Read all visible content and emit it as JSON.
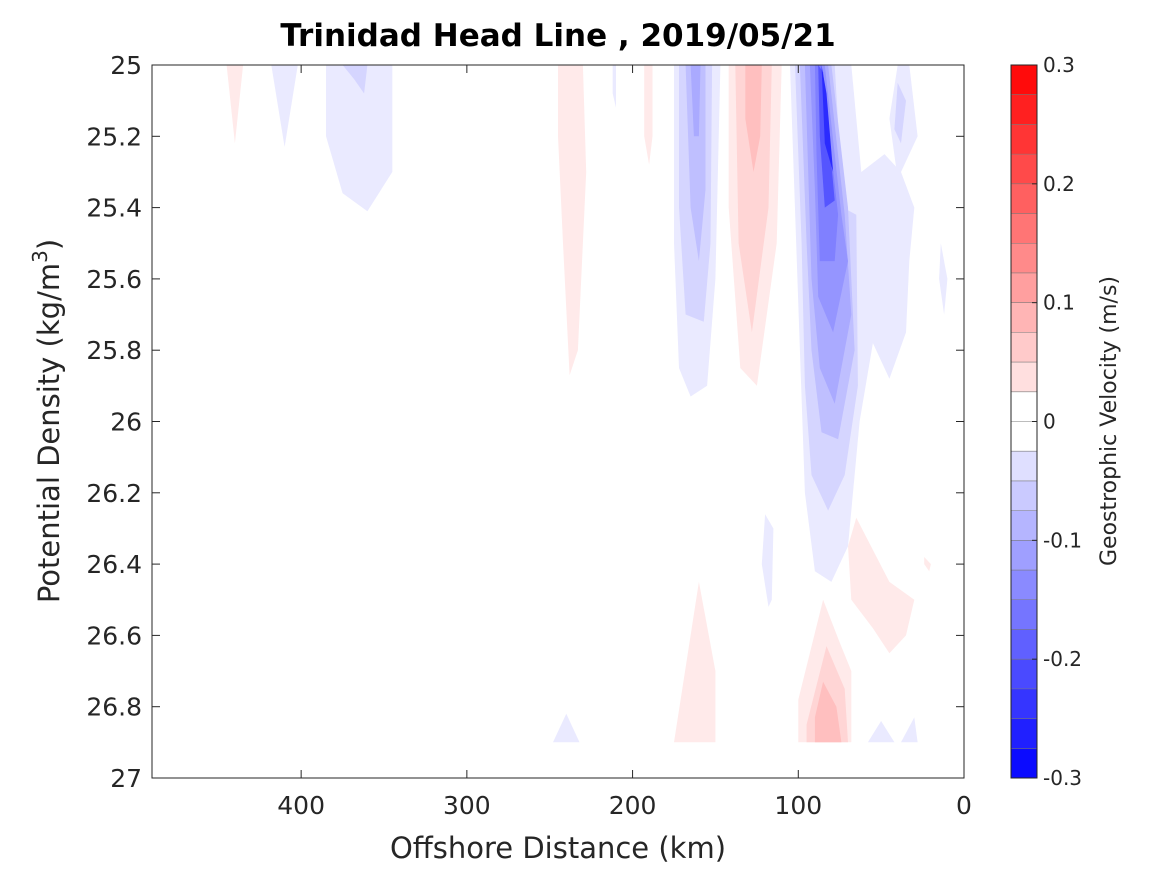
{
  "chart_data": {
    "type": "heatmap",
    "title": "Trinidad Head Line , 2019/05/21",
    "xlabel": "Offshore Distance (km)",
    "ylabel": "Potential Density (kg/m",
    "ylabel_sup": "3",
    "ylabel_close": ")",
    "xlim": [
      490,
      0
    ],
    "ylim": [
      25,
      27
    ],
    "y_reversed": true,
    "x_reversed": true,
    "xticks": [
      400,
      300,
      200,
      100,
      0
    ],
    "xtick_labels": [
      "400",
      "300",
      "200",
      "100",
      "0"
    ],
    "yticks": [
      25,
      25.2,
      25.4,
      25.6,
      25.8,
      26,
      26.2,
      26.4,
      26.6,
      26.8,
      27
    ],
    "ytick_labels": [
      "25",
      "25.2",
      "25.4",
      "25.6",
      "25.8",
      "26",
      "26.2",
      "26.4",
      "26.6",
      "26.8",
      "27"
    ],
    "colorbar": {
      "label": "Geostrophic Velocity (m/s)",
      "range": [
        -0.3,
        0.3
      ],
      "levels": 24,
      "ticks": [
        0.3,
        0.2,
        0.1,
        0,
        -0.1,
        -0.2,
        -0.3
      ],
      "tick_labels": [
        "0.3",
        "0.2",
        "0.1",
        "0",
        "-0.1",
        "-0.2",
        "-0.3"
      ],
      "colormap": "blue-white-red",
      "neg_color": "#0000ff",
      "pos_color": "#ff0000"
    },
    "regions": [
      {
        "value": 0.025,
        "points": [
          [
            445,
            25
          ],
          [
            435,
            25
          ],
          [
            440,
            25.22
          ]
        ]
      },
      {
        "value": -0.025,
        "points": [
          [
            418,
            25
          ],
          [
            402,
            25
          ],
          [
            410,
            25.23
          ]
        ]
      },
      {
        "value": -0.025,
        "points": [
          [
            385,
            25
          ],
          [
            345,
            25
          ],
          [
            345,
            25.3
          ],
          [
            360,
            25.41
          ],
          [
            375,
            25.36
          ],
          [
            385,
            25.2
          ]
        ]
      },
      {
        "value": -0.05,
        "points": [
          [
            375,
            25
          ],
          [
            360,
            25
          ],
          [
            362,
            25.08
          ],
          [
            368,
            25.04
          ]
        ]
      },
      {
        "value": 0.025,
        "points": [
          [
            245,
            25
          ],
          [
            230,
            25
          ],
          [
            228,
            25.3
          ],
          [
            233,
            25.8
          ],
          [
            238,
            25.87
          ],
          [
            242,
            25.5
          ],
          [
            245,
            25.2
          ]
        ]
      },
      {
        "value": -0.025,
        "points": [
          [
            212,
            25
          ],
          [
            210,
            25
          ],
          [
            210,
            25.12
          ],
          [
            212,
            25.08
          ]
        ]
      },
      {
        "value": 0.025,
        "points": [
          [
            193,
            25
          ],
          [
            188,
            25
          ],
          [
            188,
            25.2
          ],
          [
            190,
            25.28
          ],
          [
            193,
            25.2
          ]
        ]
      },
      {
        "value": -0.025,
        "points": [
          [
            175,
            25
          ],
          [
            147,
            25
          ],
          [
            150,
            25.6
          ],
          [
            155,
            25.9
          ],
          [
            165,
            25.93
          ],
          [
            172,
            25.85
          ],
          [
            175,
            25.5
          ]
        ]
      },
      {
        "value": -0.05,
        "points": [
          [
            172,
            25
          ],
          [
            152,
            25
          ],
          [
            153,
            25.5
          ],
          [
            157,
            25.72
          ],
          [
            168,
            25.7
          ],
          [
            172,
            25.4
          ]
        ]
      },
      {
        "value": -0.075,
        "points": [
          [
            168,
            25
          ],
          [
            156,
            25
          ],
          [
            156,
            25.35
          ],
          [
            160,
            25.55
          ],
          [
            165,
            25.4
          ]
        ]
      },
      {
        "value": -0.1,
        "points": [
          [
            165,
            25
          ],
          [
            159,
            25
          ],
          [
            160,
            25.2
          ],
          [
            163,
            25.2
          ]
        ]
      },
      {
        "value": 0.025,
        "points": [
          [
            142,
            25
          ],
          [
            110,
            25
          ],
          [
            113,
            25.5
          ],
          [
            125,
            25.9
          ],
          [
            135,
            25.85
          ],
          [
            142,
            25.4
          ]
        ]
      },
      {
        "value": 0.05,
        "points": [
          [
            138,
            25
          ],
          [
            116,
            25
          ],
          [
            118,
            25.4
          ],
          [
            128,
            25.75
          ],
          [
            136,
            25.5
          ]
        ]
      },
      {
        "value": 0.075,
        "points": [
          [
            132,
            25
          ],
          [
            122,
            25
          ],
          [
            123,
            25.2
          ],
          [
            127,
            25.3
          ],
          [
            132,
            25.15
          ]
        ]
      },
      {
        "value": -0.025,
        "points": [
          [
            105,
            25
          ],
          [
            68,
            25
          ],
          [
            62,
            25.3
          ],
          [
            48,
            25.25
          ],
          [
            38,
            25.3
          ],
          [
            30,
            25.4
          ],
          [
            33,
            25.55
          ],
          [
            35,
            25.75
          ],
          [
            45,
            25.88
          ],
          [
            55,
            25.78
          ],
          [
            63,
            26.0
          ],
          [
            70,
            26.35
          ],
          [
            80,
            26.45
          ],
          [
            90,
            26.42
          ],
          [
            96,
            26.2
          ],
          [
            99,
            25.8
          ]
        ]
      },
      {
        "value": -0.05,
        "points": [
          [
            102,
            25
          ],
          [
            78,
            25
          ],
          [
            73,
            25.4
          ],
          [
            65,
            25.42
          ],
          [
            64,
            25.9
          ],
          [
            72,
            26.15
          ],
          [
            82,
            26.25
          ],
          [
            92,
            26.15
          ],
          [
            96,
            25.9
          ],
          [
            98,
            25.5
          ]
        ]
      },
      {
        "value": -0.075,
        "points": [
          [
            99,
            25
          ],
          [
            80,
            25
          ],
          [
            70,
            25.4
          ],
          [
            66,
            25.8
          ],
          [
            76,
            26.05
          ],
          [
            86,
            26.03
          ],
          [
            92,
            25.8
          ],
          [
            95,
            25.5
          ]
        ]
      },
      {
        "value": -0.1,
        "points": [
          [
            96,
            25
          ],
          [
            82,
            25
          ],
          [
            72,
            25.42
          ],
          [
            68,
            25.7
          ],
          [
            78,
            25.95
          ],
          [
            87,
            25.85
          ],
          [
            92,
            25.6
          ]
        ]
      },
      {
        "value": -0.125,
        "points": [
          [
            93,
            25
          ],
          [
            84,
            25
          ],
          [
            74,
            25.42
          ],
          [
            70,
            25.55
          ],
          [
            79,
            25.75
          ],
          [
            88,
            25.65
          ],
          [
            90,
            25.35
          ]
        ]
      },
      {
        "value": -0.15,
        "points": [
          [
            90,
            25
          ],
          [
            86,
            25
          ],
          [
            76,
            25.42
          ],
          [
            78,
            25.55
          ],
          [
            87,
            25.55
          ],
          [
            89,
            25.25
          ]
        ]
      },
      {
        "value": -0.2,
        "points": [
          [
            88,
            25
          ],
          [
            85,
            25.02
          ],
          [
            78,
            25.38
          ],
          [
            84,
            25.4
          ],
          [
            87,
            25.2
          ]
        ]
      },
      {
        "value": -0.25,
        "points": [
          [
            86,
            25.0
          ],
          [
            83,
            25.08
          ],
          [
            79,
            25.3
          ],
          [
            84,
            25.22
          ]
        ]
      },
      {
        "value": -0.025,
        "points": [
          [
            40,
            25
          ],
          [
            33,
            25
          ],
          [
            28,
            25.2
          ],
          [
            40,
            25.32
          ],
          [
            45,
            25.15
          ]
        ]
      },
      {
        "value": -0.05,
        "points": [
          [
            40,
            25.05
          ],
          [
            35,
            25.1
          ],
          [
            38,
            25.22
          ],
          [
            42,
            25.18
          ]
        ]
      },
      {
        "value": -0.025,
        "points": [
          [
            14,
            25.5
          ],
          [
            10,
            25.6
          ],
          [
            12,
            25.7
          ],
          [
            15,
            25.6
          ]
        ]
      },
      {
        "value": -0.025,
        "points": [
          [
            120,
            26.26
          ],
          [
            115,
            26.3
          ],
          [
            116,
            26.5
          ],
          [
            118,
            26.52
          ],
          [
            122,
            26.4
          ]
        ]
      },
      {
        "value": 0.025,
        "points": [
          [
            65,
            26.27
          ],
          [
            45,
            26.45
          ],
          [
            30,
            26.5
          ],
          [
            35,
            26.6
          ],
          [
            45,
            26.65
          ],
          [
            55,
            26.58
          ],
          [
            68,
            26.5
          ],
          [
            70,
            26.35
          ]
        ]
      },
      {
        "value": 0.025,
        "points": [
          [
            24,
            26.38
          ],
          [
            20,
            26.4
          ],
          [
            21,
            26.42
          ],
          [
            24,
            26.4
          ]
        ]
      },
      {
        "value": 0.025,
        "points": [
          [
            175,
            26.9
          ],
          [
            150,
            26.9
          ],
          [
            150,
            26.7
          ],
          [
            160,
            26.45
          ],
          [
            170,
            26.75
          ]
        ]
      },
      {
        "value": 0.025,
        "points": [
          [
            100,
            26.9
          ],
          [
            68,
            26.9
          ],
          [
            68,
            26.7
          ],
          [
            75,
            26.62
          ],
          [
            85,
            26.5
          ],
          [
            100,
            26.78
          ]
        ]
      },
      {
        "value": 0.05,
        "points": [
          [
            95,
            26.9
          ],
          [
            70,
            26.9
          ],
          [
            72,
            26.75
          ],
          [
            83,
            26.63
          ],
          [
            95,
            26.85
          ]
        ]
      },
      {
        "value": 0.075,
        "points": [
          [
            90,
            26.9
          ],
          [
            74,
            26.9
          ],
          [
            77,
            26.8
          ],
          [
            85,
            26.73
          ],
          [
            90,
            26.83
          ]
        ]
      },
      {
        "value": -0.025,
        "points": [
          [
            248,
            26.9
          ],
          [
            232,
            26.9
          ],
          [
            240,
            26.82
          ]
        ]
      },
      {
        "value": -0.025,
        "points": [
          [
            58,
            26.9
          ],
          [
            42,
            26.9
          ],
          [
            50,
            26.84
          ]
        ]
      },
      {
        "value": -0.025,
        "points": [
          [
            38,
            26.9
          ],
          [
            28,
            26.9
          ],
          [
            30,
            26.83
          ]
        ]
      }
    ]
  }
}
